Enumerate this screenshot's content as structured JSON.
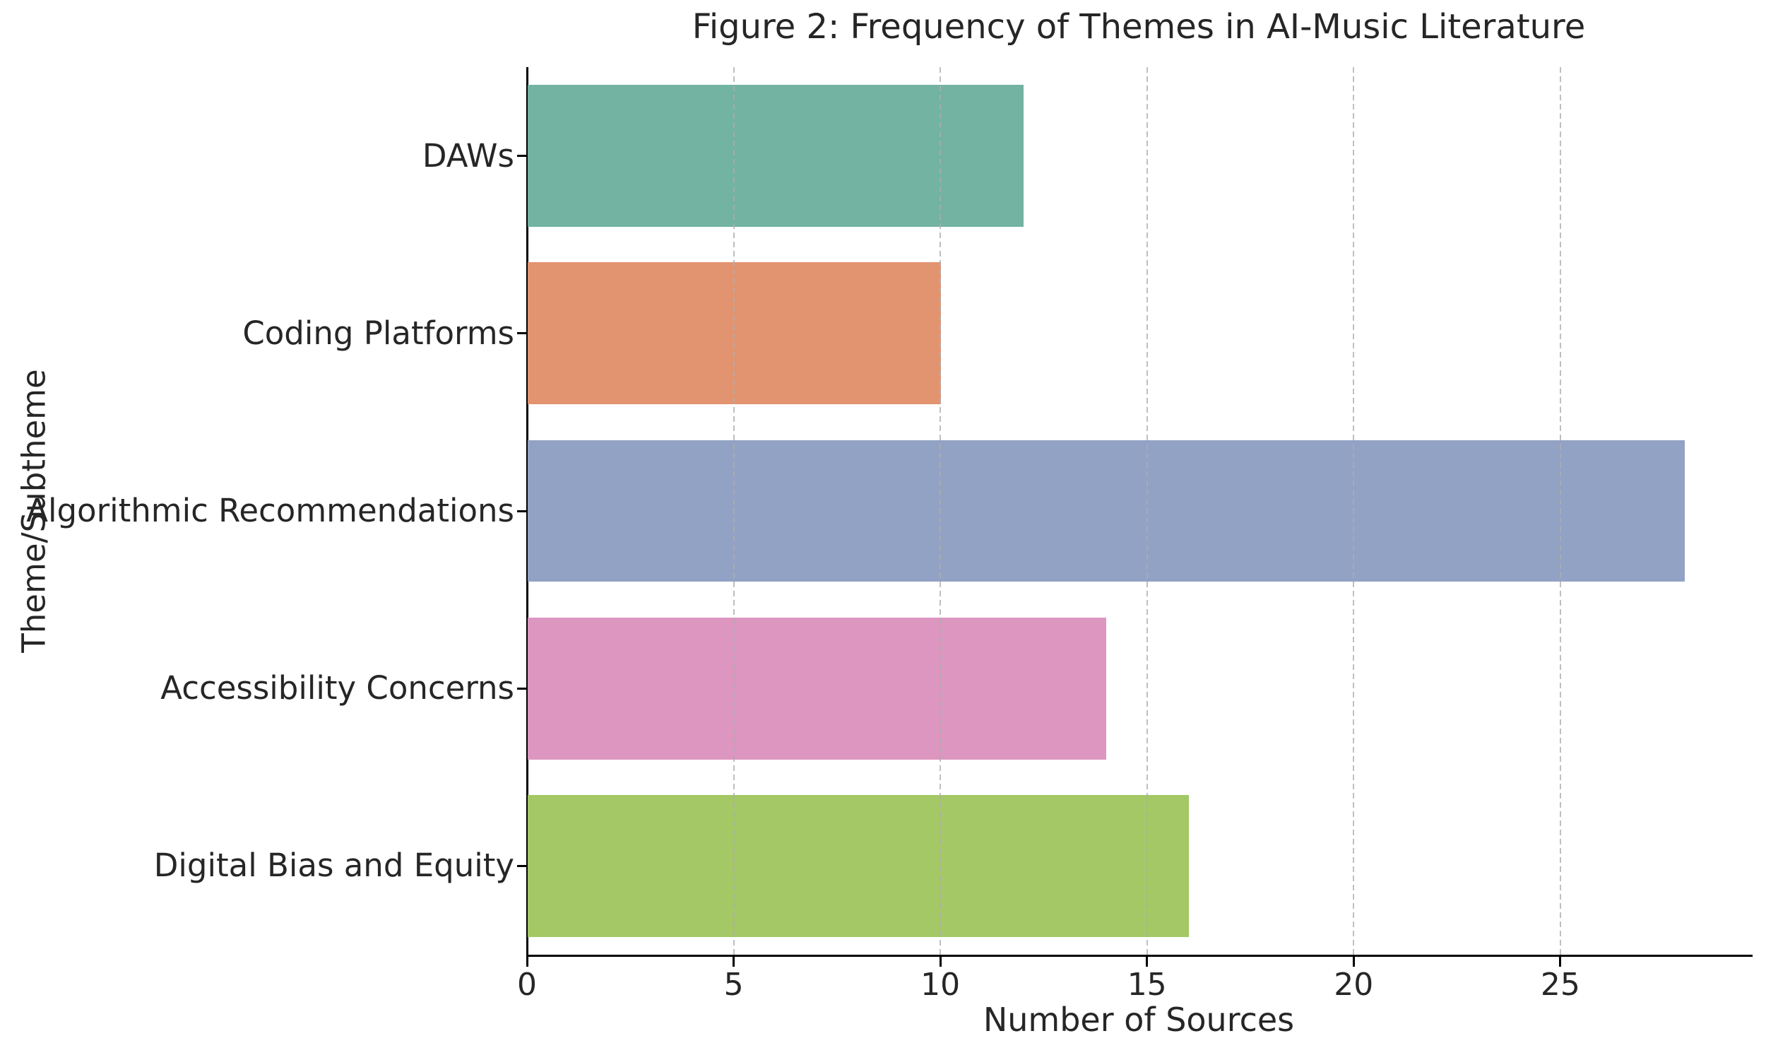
{
  "figure": {
    "title": "Figure 2: Frequency of Themes in AI-Music Literature"
  },
  "chart_data": {
    "type": "bar",
    "orientation": "horizontal",
    "title": "Figure 2: Frequency of Themes in AI-Music Literature",
    "xlabel": "Number of Sources",
    "ylabel": "Theme/Subtheme",
    "categories": [
      "DAWs",
      "Coding Platforms",
      "Algorithmic Recommendations",
      "Accessibility Concerns",
      "Digital Bias and Equity"
    ],
    "values": [
      12,
      10,
      28,
      14,
      16
    ],
    "bar_colors": [
      "#72b3a1",
      "#e29470",
      "#92a2c4",
      "#dd96c0",
      "#a3c865"
    ],
    "xticks": [
      0,
      5,
      10,
      15,
      20,
      25
    ],
    "xlim": [
      0,
      29.6
    ],
    "grid": "vertical-dashed",
    "grid_color": "#c7c7c7",
    "spine_color": "#000000",
    "text_color": "#262626",
    "background_color": "#ffffff",
    "legend": "none"
  }
}
